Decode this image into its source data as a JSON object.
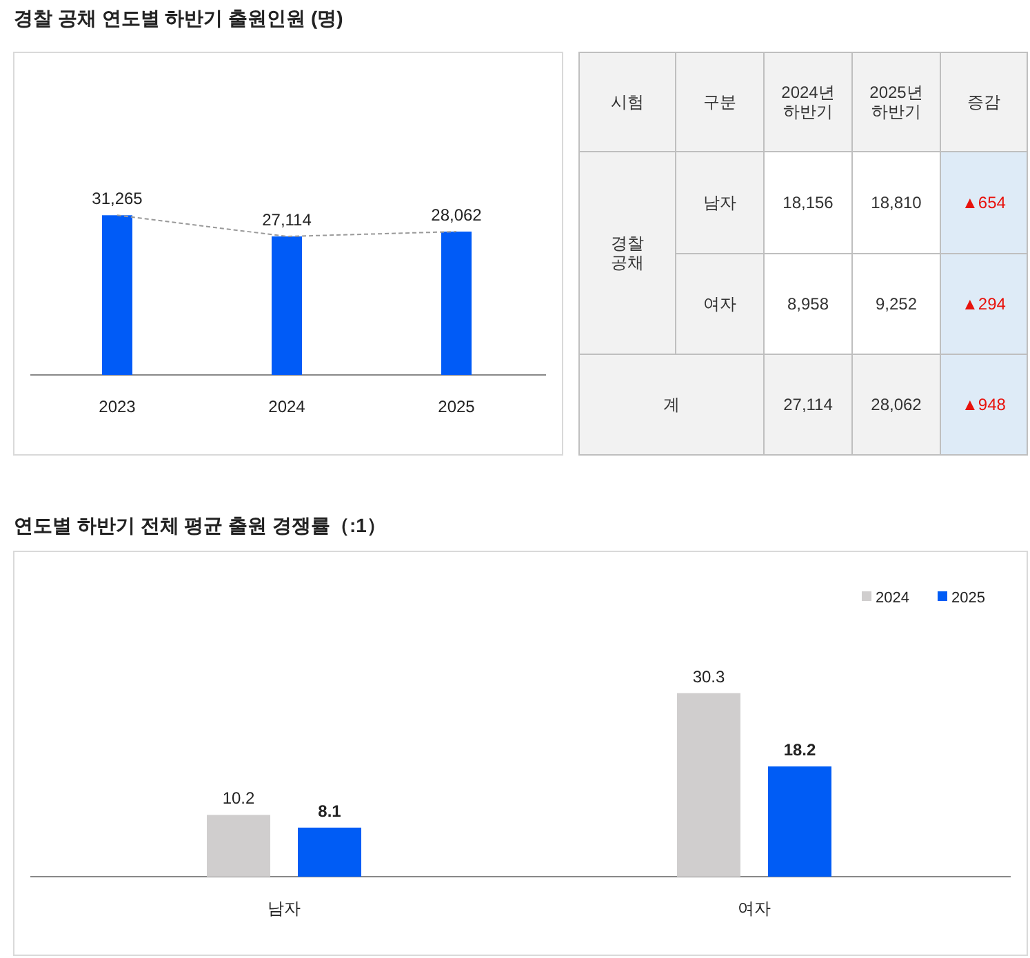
{
  "chart_data": [
    {
      "type": "bar",
      "title": "경찰 공채 연도별 하반기 출원인원 (명)",
      "categories": [
        "2023",
        "2024",
        "2025"
      ],
      "series": [
        {
          "color": "#005bf7",
          "values": [
            31265,
            27114,
            28062
          ],
          "value_labels": [
            "31,265",
            "27,114",
            "28,062"
          ]
        },
        {
          "type": "line",
          "color": "#999999",
          "line_style": "dashed",
          "values": [
            31265,
            27114,
            28062
          ]
        }
      ]
    },
    {
      "type": "other",
      "annotations": [
        "시험",
        "구분",
        "2024년 하반기",
        "2025년 하반기",
        "증감",
        "경찰 공채",
        "남자",
        "18,156",
        "18,810",
        "▲654",
        "여자",
        "8,958",
        "9,252",
        "▲294",
        "계",
        "27,114",
        "28,062",
        "▲948"
      ]
    },
    {
      "type": "bar",
      "title": "연도별 하반기 전체 평균 출원 경쟁률（:1）",
      "categories": [
        "남자",
        "여자"
      ],
      "data_labels": true,
      "legend": "top right",
      "series": [
        {
          "name": "2024",
          "color": "#d0cece",
          "values": [
            10.2,
            30.3
          ]
        },
        {
          "name": "2025",
          "color": "#005cf5",
          "values": [
            8.1,
            18.2
          ]
        }
      ]
    }
  ]
}
